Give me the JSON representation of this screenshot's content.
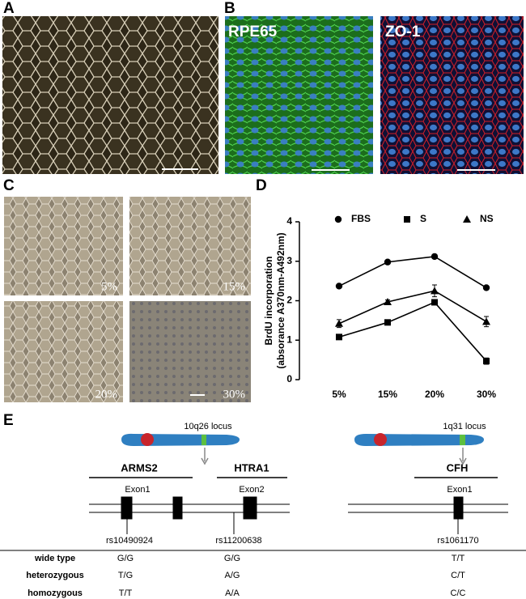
{
  "panel_a": {
    "label": "A"
  },
  "panel_b": {
    "label": "B",
    "images": [
      "RPE65",
      "ZO-1"
    ]
  },
  "panel_c": {
    "label": "C",
    "images": [
      "5%",
      "15%",
      "20%",
      "30%"
    ]
  },
  "panel_d": {
    "label": "D"
  },
  "chart_data": {
    "type": "line",
    "y_label": [
      "BrdU incorporation",
      "(absorance A370nm-A492nm)"
    ],
    "categories": [
      "5%",
      "15%",
      "20%",
      "30%"
    ],
    "ylim": [
      0,
      4
    ],
    "yticks": [
      0,
      1,
      2,
      3,
      4
    ],
    "series": [
      {
        "name": "FBS",
        "color": "#000000",
        "marker": "circle",
        "values": [
          2.37,
          2.98,
          3.12,
          2.33
        ],
        "errors": [
          0.03,
          0.03,
          0.03,
          0.05
        ]
      },
      {
        "name": "S",
        "color": "#000000",
        "marker": "square",
        "values": [
          1.08,
          1.45,
          1.96,
          0.47
        ],
        "errors": [
          0.03,
          0.03,
          0.05,
          0.08
        ]
      },
      {
        "name": "NS",
        "color": "#000000",
        "marker": "triangle",
        "values": [
          1.42,
          1.97,
          2.25,
          1.47
        ],
        "errors": [
          0.1,
          0.05,
          0.15,
          0.13
        ]
      }
    ]
  },
  "panel_e": {
    "label": "E",
    "loci": [
      "10q26 locus",
      "1q31 locus"
    ],
    "genes": [
      "ARMS2",
      "HTRA1",
      "CFH"
    ],
    "exons": [
      "Exon1",
      "Exon2",
      "Exon1"
    ],
    "snps": [
      "rs10490924",
      "rs11200638",
      "rs1061170"
    ],
    "genotypes": [
      {
        "label": "wide type",
        "values": [
          "G/G",
          "G/G",
          "T/T"
        ]
      },
      {
        "label": "heterozygous",
        "values": [
          "T/G",
          "A/G",
          "C/T"
        ]
      },
      {
        "label": "homozygous",
        "values": [
          "T/T",
          "A/A",
          "C/C"
        ]
      }
    ]
  }
}
